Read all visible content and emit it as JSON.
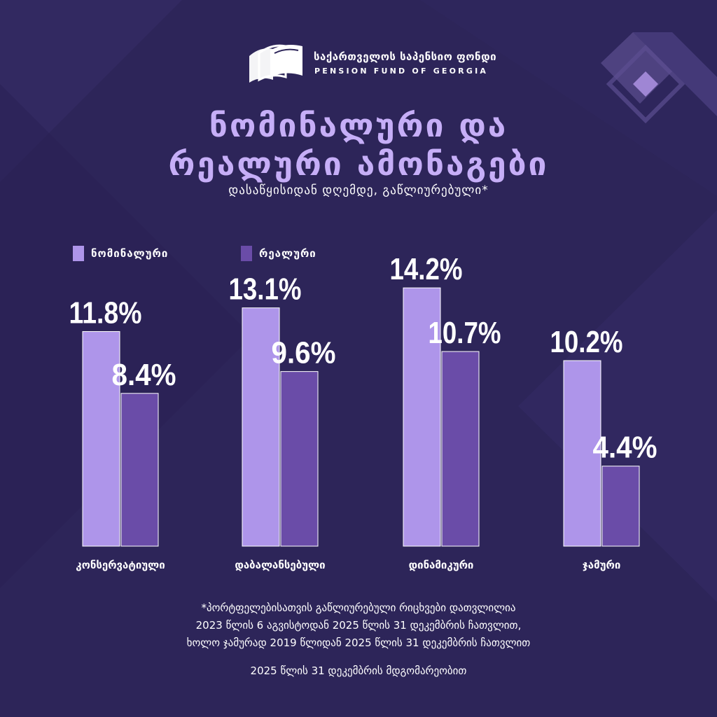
{
  "brand": {
    "name_ka": "საქართველოს საპენსიო ფონდი",
    "name_en": "PENSION FUND OF GEORGIA"
  },
  "header": {
    "title_line1": "ნომინალური და",
    "title_line2": "რეალური ამონაგები",
    "subtitle": "დასაწყისიდან დღემდე, გაწლიურებული*"
  },
  "colors": {
    "background": "#2d2559",
    "nominal": "#ae95ea",
    "real": "#6a4ca8",
    "title": "#c6aef7"
  },
  "chart_data": {
    "type": "bar",
    "title": "ნომინალური და რეალური ამონაგები",
    "subtitle": "დასაწყისიდან დღემდე, გაწლიურებული*",
    "categories": [
      "კონსერვატიული",
      "დაბალანსებული",
      "დინამიკური",
      "ჯამური"
    ],
    "series": [
      {
        "name": "ნომინალური",
        "values": [
          11.8,
          13.1,
          14.2,
          10.2
        ],
        "labels": [
          "11.8%",
          "13.1%",
          "14.2%",
          "10.2%"
        ]
      },
      {
        "name": "რეალური",
        "values": [
          8.4,
          9.6,
          10.7,
          4.4
        ],
        "labels": [
          "8.4%",
          "9.6%",
          "10.7%",
          "4.4%"
        ]
      }
    ],
    "ylim": [
      0,
      17.4
    ],
    "unit": "%",
    "grid": false,
    "legend": "top-left",
    "xlabel": "",
    "ylabel": ""
  },
  "footer": {
    "note_line1": "*პორტფელებისათვის გაწლიურებული რიცხვები დათვლილია",
    "note_line2": "2023 წლის 6 აგვისტოდან 2025 წლის 31 დეკემბრის ჩათვლით,",
    "note_line3": "ხოლო ჯამურად 2019 წლიდან 2025 წლის 31 დეკემბრის ჩათვლით",
    "as_of": "2025 წლის 31 დეკემბრის მდგომარეობით"
  }
}
